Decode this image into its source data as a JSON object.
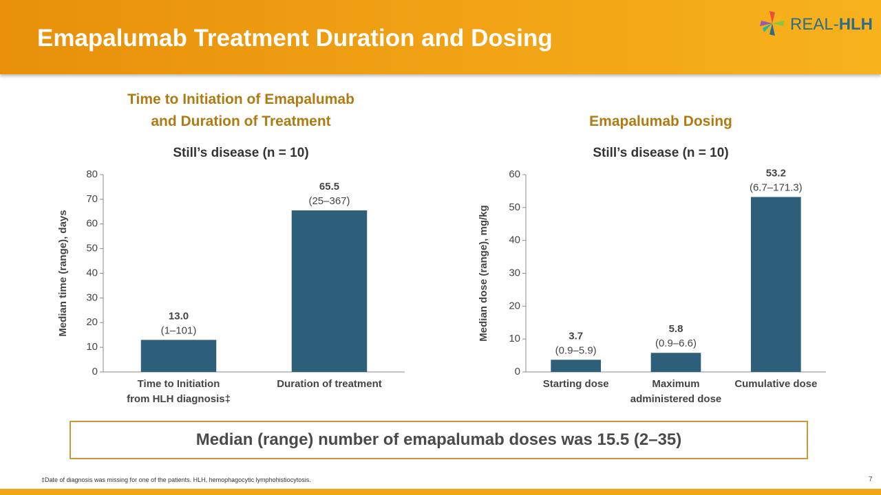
{
  "title": "Emapalumab Treatment Duration and Dosing",
  "logo": {
    "prefix": "REAL-",
    "suffix": "HLH"
  },
  "summary": "Median (range) number of emapalumab doses was 15.5 (2–35)",
  "footnote": "‡Date of diagnosis was missing for one of the patients. HLH, hemophagocytic lymphohistiocytosis.",
  "page_number": "7",
  "chart_data": [
    {
      "type": "bar",
      "title": "Time to Initiation of Emapalumab\nand Duration of Treatment",
      "subtitle": "Still’s disease (n = 10)",
      "y_label": "Median time (range), days",
      "categories": [
        "Time to Initiation\nfrom HLH diagnosis‡",
        "Duration of treatment"
      ],
      "values": [
        13.0,
        65.5
      ],
      "value_labels": [
        "13.0",
        "65.5"
      ],
      "range_labels": [
        "(1–101)",
        "(25–367)"
      ],
      "color": "#2e5f7a",
      "ylim": [
        0,
        80
      ],
      "yticks": [
        0,
        10,
        20,
        30,
        40,
        50,
        60,
        70,
        80
      ],
      "grid": false
    },
    {
      "type": "bar",
      "title": "Emapalumab Dosing",
      "subtitle": "Still’s disease (n = 10)",
      "y_label": "Median dose (range), mg/kg",
      "categories": [
        "Starting dose",
        "Maximum\nadministered dose",
        "Cumulative dose"
      ],
      "values": [
        3.7,
        5.8,
        53.2
      ],
      "range_labels": [
        "(0.9–5.9)",
        "(0.9–6.6)",
        "(6.7–171.3)"
      ],
      "color": "#2e5f7a",
      "ylim": [
        0,
        60
      ],
      "yticks": [
        0,
        10,
        20,
        30,
        40,
        50,
        60
      ],
      "grid": false
    }
  ]
}
